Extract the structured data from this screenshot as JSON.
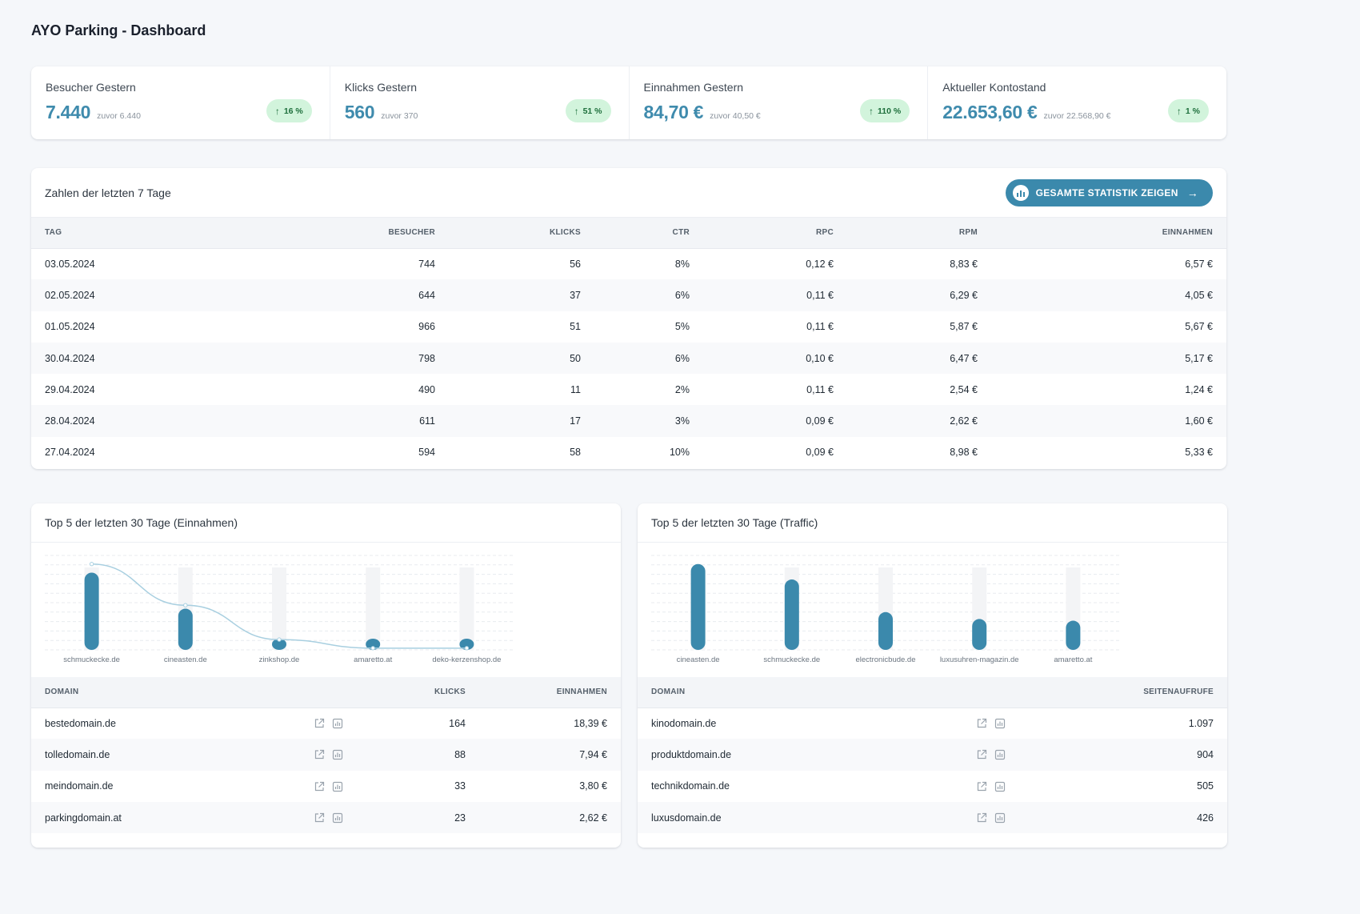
{
  "page": {
    "title": "AYO Parking - Dashboard"
  },
  "kpis": [
    {
      "label": "Besucher Gestern",
      "value": "7.440",
      "previous": "zuvor 6.440",
      "change": "16 %"
    },
    {
      "label": "Klicks Gestern",
      "value": "560",
      "previous": "zuvor 370",
      "change": "51 %"
    },
    {
      "label": "Einnahmen Gestern",
      "value": "84,70 €",
      "previous": "zuvor 40,50 €",
      "change": "110 %"
    },
    {
      "label": "Aktueller Kontostand",
      "value": "22.653,60 €",
      "previous": "zuvor 22.568,90 €",
      "change": "1 %"
    }
  ],
  "week": {
    "title": "Zahlen der letzten 7 Tage",
    "button_label": "GESAMTE STATISTIK ZEIGEN",
    "columns": [
      "TAG",
      "BESUCHER",
      "KLICKS",
      "CTR",
      "RPC",
      "RPM",
      "EINNAHMEN"
    ],
    "rows": [
      [
        "03.05.2024",
        "744",
        "56",
        "8%",
        "0,12 €",
        "8,83 €",
        "6,57 €"
      ],
      [
        "02.05.2024",
        "644",
        "37",
        "6%",
        "0,11 €",
        "6,29 €",
        "4,05 €"
      ],
      [
        "01.05.2024",
        "966",
        "51",
        "5%",
        "0,11 €",
        "5,87 €",
        "5,67 €"
      ],
      [
        "30.04.2024",
        "798",
        "50",
        "6%",
        "0,10 €",
        "6,47 €",
        "5,17 €"
      ],
      [
        "29.04.2024",
        "490",
        "11",
        "2%",
        "0,11 €",
        "2,54 €",
        "1,24 €"
      ],
      [
        "28.04.2024",
        "611",
        "17",
        "3%",
        "0,09 €",
        "2,62 €",
        "1,60 €"
      ],
      [
        "27.04.2024",
        "594",
        "58",
        "10%",
        "0,09 €",
        "8,98 €",
        "5,33 €"
      ]
    ]
  },
  "top_revenue": {
    "title": "Top 5 der letzten 30 Tage (Einnahmen)",
    "columns": [
      "DOMAIN",
      "",
      "KLICKS",
      "EINNAHMEN"
    ],
    "rows": [
      [
        "bestedomain.de",
        "164",
        "18,39 €"
      ],
      [
        "tolledomain.de",
        "88",
        "7,94 €"
      ],
      [
        "meindomain.de",
        "33",
        "3,80 €"
      ],
      [
        "parkingdomain.at",
        "23",
        "2,62 €"
      ]
    ]
  },
  "top_traffic": {
    "title": "Top 5 der letzten 30 Tage (Traffic)",
    "columns": [
      "DOMAIN",
      "",
      "SEITENAUFRUFE"
    ],
    "rows": [
      [
        "kinodomain.de",
        "1.097"
      ],
      [
        "produktdomain.de",
        "904"
      ],
      [
        "technikdomain.de",
        "505"
      ],
      [
        "luxusdomain.de",
        "426"
      ]
    ]
  },
  "chart_data": [
    {
      "type": "bar",
      "categories": [
        "schmuckecke.de",
        "cineasten.de",
        "zinkshop.de",
        "amaretto.at",
        "deko-kerzenshop.de"
      ],
      "series": [
        {
          "type": "bar",
          "values": [
            90,
            48,
            10,
            5,
            6
          ]
        },
        {
          "type": "line",
          "values": [
            100,
            52,
            12,
            2,
            2
          ]
        }
      ],
      "ylim": [
        0,
        110
      ],
      "grid": true
    },
    {
      "type": "bar",
      "categories": [
        "cineasten.de",
        "schmuckecke.de",
        "electronicbude.de",
        "luxusuhren-magazin.de",
        "amaretto.at"
      ],
      "series": [
        {
          "type": "bar",
          "values": [
            100,
            82,
            44,
            36,
            34
          ]
        }
      ],
      "ylim": [
        0,
        110
      ],
      "grid": true
    }
  ],
  "colors": {
    "accent": "#3f8bad",
    "bar": "#3b89ac",
    "badge_bg": "#d2f4dc",
    "badge_text": "#1d6e3b"
  }
}
